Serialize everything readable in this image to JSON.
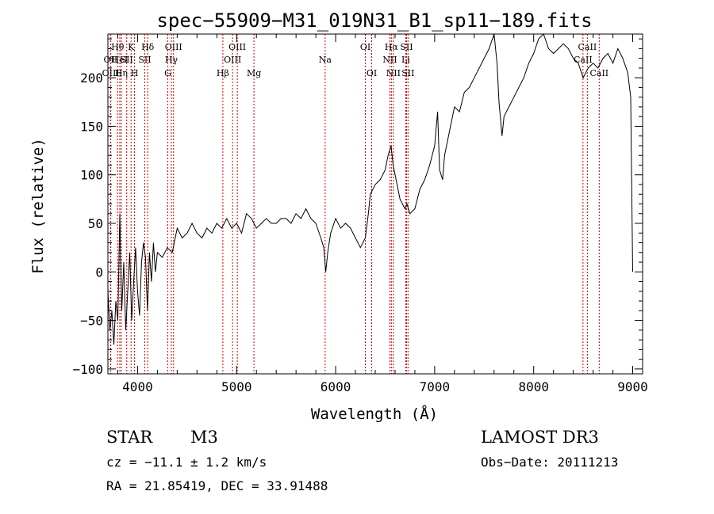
{
  "chart_data": {
    "type": "line",
    "title": "spec−55909−M31_019N31_B1_sp11−189.fits",
    "xlabel": "Wavelength (Å)",
    "ylabel": "Flux (relative)",
    "xlim": [
      3700,
      9100
    ],
    "ylim": [
      -105,
      245
    ],
    "x_ticks": [
      4000,
      5000,
      6000,
      7000,
      8000,
      9000
    ],
    "x_tick_labels": [
      "4000",
      "5000",
      "6000",
      "7000",
      "8000",
      "9000"
    ],
    "y_ticks": [
      -100,
      -50,
      0,
      50,
      100,
      150,
      200
    ],
    "y_tick_labels": [
      "−100",
      "−50",
      "0",
      "50",
      "100",
      "150",
      "200"
    ],
    "series": [
      {
        "name": "flux",
        "x": [
          3700,
          3720,
          3740,
          3760,
          3780,
          3800,
          3820,
          3840,
          3860,
          3880,
          3900,
          3920,
          3940,
          3960,
          3980,
          4000,
          4020,
          4040,
          4060,
          4080,
          4100,
          4120,
          4140,
          4160,
          4180,
          4200,
          4250,
          4300,
          4350,
          4400,
          4450,
          4500,
          4550,
          4600,
          4650,
          4700,
          4750,
          4800,
          4850,
          4900,
          4950,
          5000,
          5050,
          5100,
          5150,
          5200,
          5250,
          5300,
          5350,
          5400,
          5450,
          5500,
          5550,
          5600,
          5650,
          5700,
          5750,
          5800,
          5850,
          5880,
          5900,
          5920,
          5950,
          6000,
          6050,
          6100,
          6150,
          6200,
          6250,
          6300,
          6330,
          6350,
          6400,
          6450,
          6500,
          6530,
          6560,
          6580,
          6600,
          6620,
          6650,
          6700,
          6720,
          6750,
          6800,
          6850,
          6900,
          6950,
          7000,
          7030,
          7050,
          7080,
          7100,
          7150,
          7200,
          7250,
          7300,
          7350,
          7400,
          7450,
          7500,
          7550,
          7600,
          7630,
          7650,
          7680,
          7700,
          7750,
          7800,
          7850,
          7900,
          7950,
          8000,
          8050,
          8100,
          8150,
          8200,
          8250,
          8300,
          8350,
          8400,
          8450,
          8500,
          8550,
          8600,
          8650,
          8700,
          8750,
          8800,
          8850,
          8900,
          8950,
          8980,
          9000
        ],
        "values": [
          -20,
          -60,
          -40,
          -75,
          -30,
          -50,
          60,
          -40,
          10,
          -60,
          -20,
          20,
          -50,
          -10,
          25,
          -20,
          -45,
          10,
          30,
          15,
          -40,
          20,
          -10,
          30,
          0,
          20,
          15,
          25,
          20,
          45,
          35,
          40,
          50,
          40,
          35,
          45,
          40,
          50,
          45,
          55,
          45,
          50,
          40,
          60,
          55,
          45,
          50,
          55,
          50,
          50,
          55,
          55,
          50,
          60,
          55,
          65,
          55,
          50,
          35,
          25,
          0,
          20,
          40,
          55,
          45,
          50,
          45,
          35,
          25,
          35,
          60,
          80,
          90,
          95,
          105,
          120,
          130,
          110,
          100,
          90,
          75,
          65,
          70,
          60,
          65,
          85,
          95,
          110,
          130,
          165,
          105,
          95,
          120,
          145,
          170,
          165,
          185,
          190,
          200,
          210,
          220,
          230,
          245,
          215,
          175,
          140,
          160,
          170,
          180,
          190,
          200,
          215,
          225,
          240,
          245,
          230,
          225,
          230,
          235,
          230,
          220,
          215,
          200,
          210,
          215,
          210,
          220,
          225,
          215,
          230,
          220,
          205,
          180,
          0
        ]
      }
    ],
    "lines": [
      {
        "label": "Hθ",
        "x": 3798,
        "row": 0
      },
      {
        "label": "OII",
        "x": 3727,
        "row": 1
      },
      {
        "label": "OIII",
        "x": 3729,
        "row": 2
      },
      {
        "label": "HeI",
        "x": 3820,
        "row": 1
      },
      {
        "label": "Hη",
        "x": 3835,
        "row": 2
      },
      {
        "label": "K",
        "x": 3934,
        "row": 0
      },
      {
        "label": "SII",
        "x": 3890,
        "row": 1
      },
      {
        "label": "H",
        "x": 3969,
        "row": 2
      },
      {
        "label": "Hδ",
        "x": 4102,
        "row": 0
      },
      {
        "label": "SII",
        "x": 4072,
        "row": 1
      },
      {
        "label": "OIII",
        "x": 4363,
        "row": 0
      },
      {
        "label": "Hγ",
        "x": 4341,
        "row": 1
      },
      {
        "label": "G",
        "x": 4305,
        "row": 2
      },
      {
        "label": "Hβ",
        "x": 4861,
        "row": 2
      },
      {
        "label": "OIII",
        "x": 5007,
        "row": 0
      },
      {
        "label": "OIII",
        "x": 4959,
        "row": 1
      },
      {
        "label": "Mg",
        "x": 5175,
        "row": 2
      },
      {
        "label": "Na",
        "x": 5894,
        "row": 1
      },
      {
        "label": "OI",
        "x": 6300,
        "row": 0
      },
      {
        "label": "OI",
        "x": 6364,
        "row": 2
      },
      {
        "label": "Hα",
        "x": 6563,
        "row": 0
      },
      {
        "label": "NII",
        "x": 6548,
        "row": 1
      },
      {
        "label": "NII",
        "x": 6583,
        "row": 2
      },
      {
        "label": "SII",
        "x": 6716,
        "row": 0
      },
      {
        "label": "Li",
        "x": 6708,
        "row": 1
      },
      {
        "label": "SII",
        "x": 6731,
        "row": 2
      },
      {
        "label": "CaII",
        "x": 8542,
        "row": 0
      },
      {
        "label": "CaII",
        "x": 8498,
        "row": 1
      },
      {
        "label": "CaII",
        "x": 8662,
        "row": 2
      }
    ]
  },
  "footer": {
    "class_label": "STAR",
    "subclass": "M3",
    "survey": "LAMOST DR3",
    "cz": "cz = −11.1 ± 1.2 km/s",
    "obs_date": "Obs−Date: 20111213",
    "radec": "RA =  21.85419, DEC =  33.91488"
  },
  "colors": {
    "spectrum": "#000000",
    "line_markers": "#cc0000",
    "axes": "#000000",
    "background": "#ffffff"
  }
}
